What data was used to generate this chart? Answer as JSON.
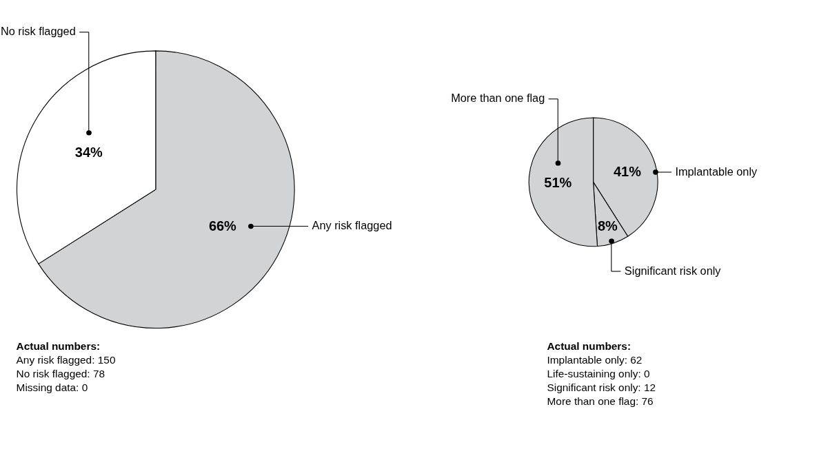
{
  "chart_data": [
    {
      "type": "pie",
      "categories": [
        "Any risk flagged",
        "No risk flagged"
      ],
      "values": [
        66,
        34
      ],
      "colors": [
        "#d1d3d4",
        "#ffffff"
      ],
      "value_labels": [
        "66%",
        "34%"
      ],
      "annotations": [
        "Actual numbers:",
        "Any risk flagged: 150",
        "No risk flagged: 78",
        "Missing data: 0"
      ]
    },
    {
      "type": "pie",
      "categories": [
        "Implantable only",
        "Significant risk only",
        "More than one flag"
      ],
      "values": [
        41,
        8,
        51
      ],
      "colors": [
        "#d1d3d4",
        "#d1d3d4",
        "#d1d3d4"
      ],
      "value_labels": [
        "41%",
        "8%",
        "51%"
      ],
      "annotations": [
        "Actual numbers:",
        "Implantable only: 62",
        "Life-sustaining only: 0",
        "Significant risk only: 12",
        "More than one flag: 76"
      ]
    }
  ]
}
